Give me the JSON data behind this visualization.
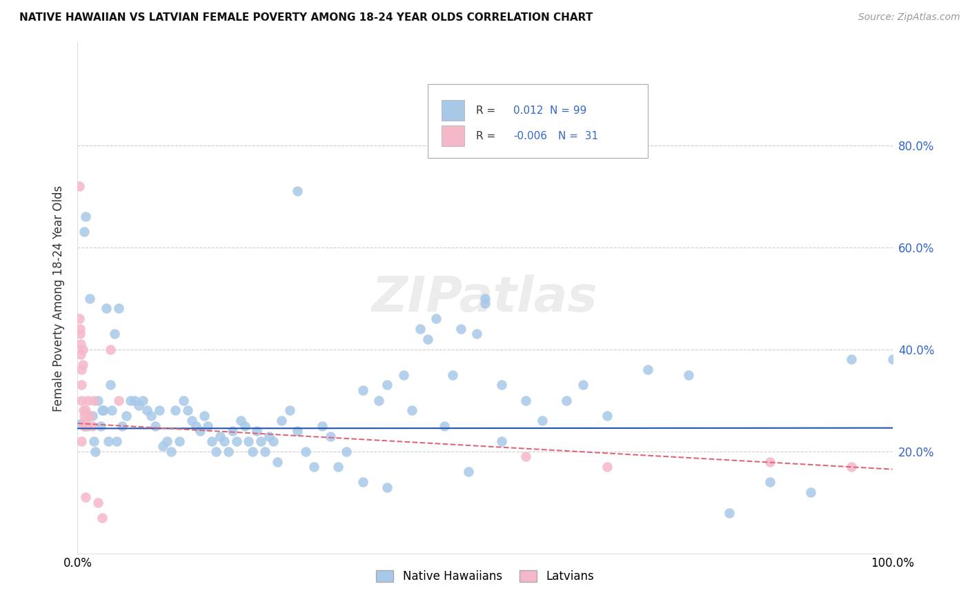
{
  "title": "NATIVE HAWAIIAN VS LATVIAN FEMALE POVERTY AMONG 18-24 YEAR OLDS CORRELATION CHART",
  "source": "Source: ZipAtlas.com",
  "ylabel": "Female Poverty Among 18-24 Year Olds",
  "xlim": [
    0,
    1.0
  ],
  "ylim": [
    0,
    1.0
  ],
  "xticks": [
    0.0,
    0.2,
    0.4,
    0.6,
    0.8,
    1.0
  ],
  "xticklabels": [
    "0.0%",
    "",
    "",
    "",
    "",
    "100.0%"
  ],
  "yticks": [
    0.0,
    0.2,
    0.4,
    0.6,
    0.8
  ],
  "yticklabels": [
    "",
    "",
    "",
    "",
    ""
  ],
  "right_yticks": [
    0.2,
    0.4,
    0.6,
    0.8
  ],
  "right_yticklabels": [
    "20.0%",
    "40.0%",
    "60.0%",
    "80.0%"
  ],
  "legend_r_blue": "0.012",
  "legend_n_blue": "99",
  "legend_r_pink": "-0.006",
  "legend_n_pink": "31",
  "blue_color": "#a8c8e8",
  "pink_color": "#f5b8c8",
  "trend_blue_color": "#2255aa",
  "trend_pink_color": "#dd6677",
  "background_color": "#ffffff",
  "grid_color": "#cccccc",
  "watermark_text": "ZIPatlas",
  "blue_trend_intercept": 0.245,
  "blue_trend_slope": 0.001,
  "pink_trend_intercept": 0.255,
  "pink_trend_slope": -0.09,
  "native_hawaiian_x": [
    0.005,
    0.008,
    0.01,
    0.012,
    0.015,
    0.018,
    0.02,
    0.022,
    0.025,
    0.028,
    0.03,
    0.032,
    0.035,
    0.038,
    0.04,
    0.042,
    0.045,
    0.048,
    0.05,
    0.055,
    0.06,
    0.065,
    0.07,
    0.075,
    0.08,
    0.085,
    0.09,
    0.095,
    0.1,
    0.105,
    0.11,
    0.115,
    0.12,
    0.125,
    0.13,
    0.135,
    0.14,
    0.145,
    0.15,
    0.155,
    0.16,
    0.165,
    0.17,
    0.175,
    0.18,
    0.185,
    0.19,
    0.195,
    0.2,
    0.205,
    0.21,
    0.215,
    0.22,
    0.225,
    0.23,
    0.235,
    0.24,
    0.245,
    0.25,
    0.26,
    0.27,
    0.28,
    0.29,
    0.3,
    0.31,
    0.32,
    0.33,
    0.35,
    0.37,
    0.38,
    0.4,
    0.41,
    0.42,
    0.43,
    0.44,
    0.46,
    0.47,
    0.49,
    0.5,
    0.52,
    0.55,
    0.57,
    0.6,
    0.62,
    0.65,
    0.7,
    0.75,
    0.8,
    0.85,
    0.9,
    0.95,
    1.0,
    0.27,
    0.5,
    0.38,
    0.45,
    0.48,
    0.52,
    0.35
  ],
  "native_hawaiian_y": [
    0.255,
    0.63,
    0.66,
    0.25,
    0.5,
    0.27,
    0.22,
    0.2,
    0.3,
    0.25,
    0.28,
    0.28,
    0.48,
    0.22,
    0.33,
    0.28,
    0.43,
    0.22,
    0.48,
    0.25,
    0.27,
    0.3,
    0.3,
    0.29,
    0.3,
    0.28,
    0.27,
    0.25,
    0.28,
    0.21,
    0.22,
    0.2,
    0.28,
    0.22,
    0.3,
    0.28,
    0.26,
    0.25,
    0.24,
    0.27,
    0.25,
    0.22,
    0.2,
    0.23,
    0.22,
    0.2,
    0.24,
    0.22,
    0.26,
    0.25,
    0.22,
    0.2,
    0.24,
    0.22,
    0.2,
    0.23,
    0.22,
    0.18,
    0.26,
    0.28,
    0.24,
    0.2,
    0.17,
    0.25,
    0.23,
    0.17,
    0.2,
    0.32,
    0.3,
    0.33,
    0.35,
    0.28,
    0.44,
    0.42,
    0.46,
    0.35,
    0.44,
    0.43,
    0.49,
    0.33,
    0.3,
    0.26,
    0.3,
    0.33,
    0.27,
    0.36,
    0.35,
    0.08,
    0.14,
    0.12,
    0.38,
    0.38,
    0.71,
    0.5,
    0.13,
    0.25,
    0.16,
    0.22,
    0.14
  ],
  "latvian_x": [
    0.002,
    0.002,
    0.003,
    0.003,
    0.004,
    0.004,
    0.005,
    0.005,
    0.005,
    0.005,
    0.006,
    0.006,
    0.007,
    0.008,
    0.008,
    0.009,
    0.01,
    0.01,
    0.01,
    0.012,
    0.015,
    0.018,
    0.02,
    0.025,
    0.03,
    0.04,
    0.05,
    0.55,
    0.65,
    0.85,
    0.95
  ],
  "latvian_y": [
    0.72,
    0.46,
    0.44,
    0.43,
    0.41,
    0.39,
    0.36,
    0.33,
    0.3,
    0.22,
    0.4,
    0.37,
    0.28,
    0.27,
    0.25,
    0.25,
    0.28,
    0.26,
    0.11,
    0.3,
    0.27,
    0.25,
    0.3,
    0.1,
    0.07,
    0.4,
    0.3,
    0.19,
    0.17,
    0.18,
    0.17
  ]
}
